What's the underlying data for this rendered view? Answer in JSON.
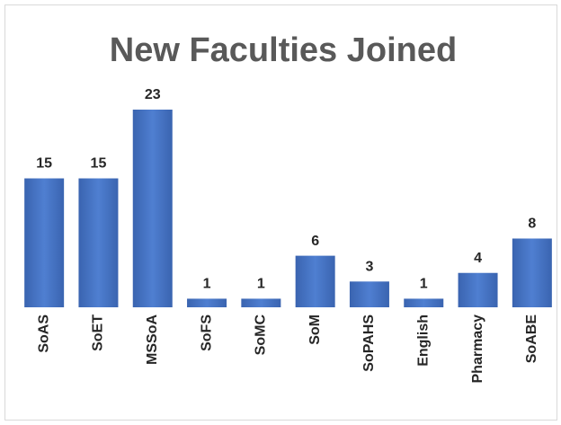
{
  "chart_data": {
    "type": "bar",
    "title": "New Faculties Joined",
    "categories": [
      "SoAS",
      "SoET",
      "MSSoA",
      "SoFS",
      "SoMC",
      "SoM",
      "SoPAHS",
      "English",
      "Pharmacy",
      "SoABE"
    ],
    "values": [
      15,
      15,
      23,
      1,
      1,
      6,
      3,
      1,
      4,
      8
    ],
    "color": "#4472c4"
  }
}
